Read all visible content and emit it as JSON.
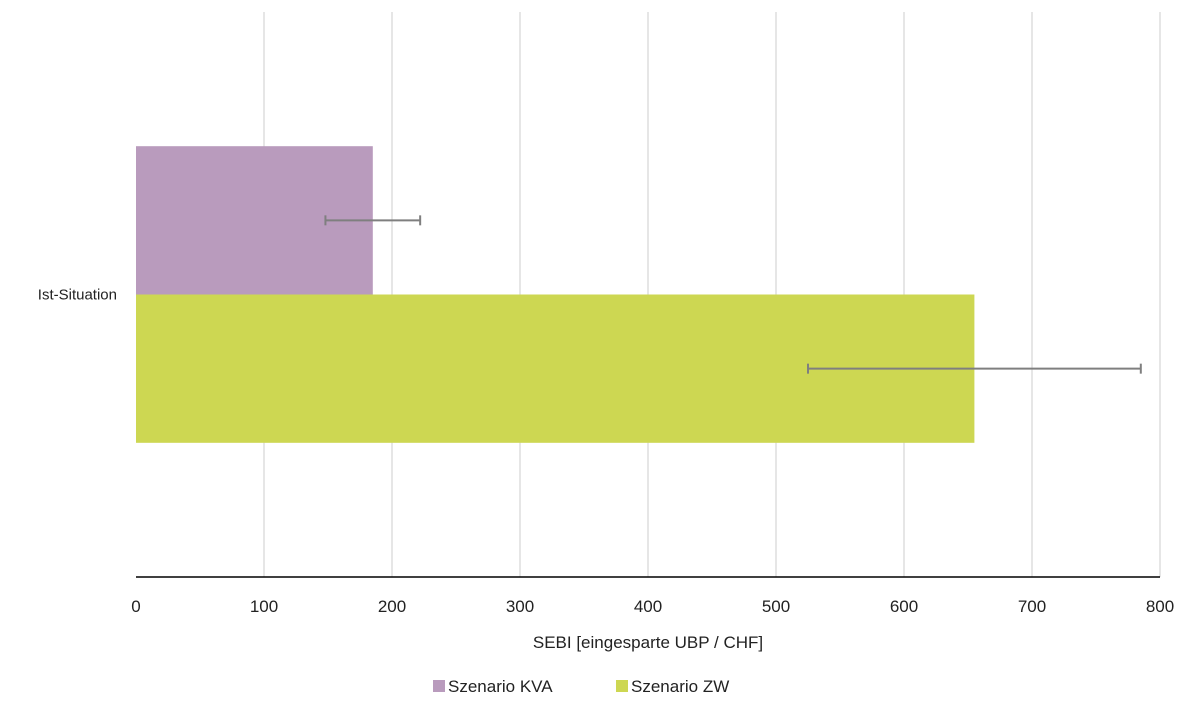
{
  "chart_data": {
    "type": "bar",
    "orientation": "horizontal",
    "categories": [
      "Ist-Situation"
    ],
    "series": [
      {
        "name": "Szenario KVA",
        "values": [
          185
        ],
        "error_low": [
          148
        ],
        "error_high": [
          222
        ],
        "color": "#b99bbd"
      },
      {
        "name": "Szenario ZW",
        "values": [
          655
        ],
        "error_low": [
          525
        ],
        "error_high": [
          785
        ],
        "color": "#cdd752"
      }
    ],
    "xlabel": "SEBI  [eingesparte UBP / CHF]",
    "ylabel": "",
    "xlim": [
      0,
      800
    ],
    "xticks": [
      0,
      100,
      200,
      300,
      400,
      500,
      600,
      700,
      800
    ],
    "grid": true,
    "legend_position": "bottom",
    "error_bar_color": "#7f7f7f",
    "gridline_color": "#d9d9d9"
  }
}
